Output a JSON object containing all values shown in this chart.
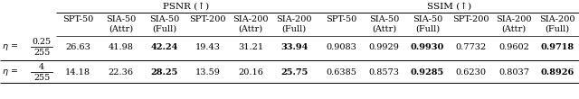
{
  "title_psnr": "PSNR (↑)",
  "title_ssim": "SSIM (↑)",
  "col_header_labels": [
    "SPT-50",
    "SIA-50\n(Attr)",
    "SIA-50\n(Full)",
    "SPT-200",
    "SIA-200\n(Attr)",
    "SIA-200\n(Full)"
  ],
  "row1_psnr": [
    "26.63",
    "41.98",
    "42.24",
    "19.43",
    "31.21",
    "33.94"
  ],
  "row2_psnr": [
    "14.18",
    "22.36",
    "28.25",
    "13.59",
    "20.16",
    "25.75"
  ],
  "row1_ssim": [
    "0.9083",
    "0.9929",
    "0.9930",
    "0.7732",
    "0.9602",
    "0.9718"
  ],
  "row2_ssim": [
    "0.6385",
    "0.8573",
    "0.9285",
    "0.6230",
    "0.8037",
    "0.8926"
  ],
  "bold_col_row1": [
    2,
    5
  ],
  "bold_col_row2": [
    2,
    5
  ],
  "bg_color": "#ffffff",
  "line_color": "#000000",
  "text_color": "#000000",
  "fontsize": 7.0,
  "header_fontsize": 7.0,
  "group_title_fontsize": 7.5
}
